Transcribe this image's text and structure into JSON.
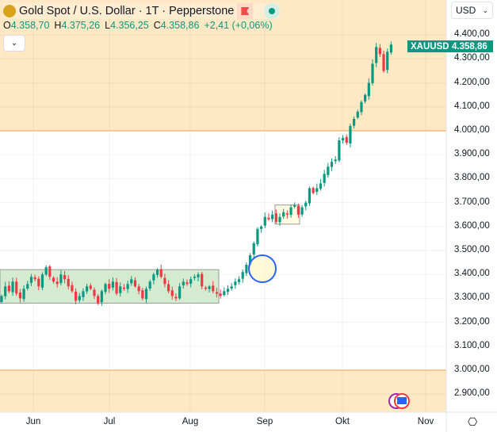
{
  "header": {
    "title": "Gold Spot / U.S. Dollar · 1T · Pepperstone",
    "open_label": "O",
    "open": "4.358,70",
    "high_label": "H",
    "high": "4.375,26",
    "low_label": "L",
    "low": "4.356,25",
    "close_label": "C",
    "close": "4.358,86",
    "change": "+2,41 (+0,06%)"
  },
  "currency": "USD",
  "price_tag": {
    "symbol": "XAUUSD",
    "price": "4.358,86"
  },
  "y_axis": [
    "4.400,00",
    "4.300,00",
    "4.200,00",
    "4.100,00",
    "4.000,00",
    "3.900,00",
    "3.800,00",
    "3.700,00",
    "3.600,00",
    "3.500,00",
    "3.400,00",
    "3.300,00",
    "3.200,00",
    "3.100,00",
    "3.000,00",
    "2.900,00"
  ],
  "x_axis": [
    "Jun",
    "Jul",
    "Aug",
    "Sep",
    "Okt",
    "Nov"
  ],
  "colors": {
    "up": "#089981",
    "down": "#f23645",
    "zone": "#ffe8c4",
    "range_box": "#d4ebd0",
    "circle": "#2962ff"
  },
  "closes": [
    3310,
    3350,
    3330,
    3370,
    3320,
    3300,
    3340,
    3360,
    3390,
    3380,
    3350,
    3400,
    3430,
    3390,
    3370,
    3360,
    3400,
    3380,
    3350,
    3330,
    3290,
    3310,
    3330,
    3350,
    3340,
    3310,
    3280,
    3330,
    3360,
    3340,
    3370,
    3320,
    3350,
    3340,
    3360,
    3380,
    3350,
    3330,
    3300,
    3340,
    3370,
    3400,
    3420,
    3390,
    3360,
    3330,
    3310,
    3300,
    3350,
    3370,
    3360,
    3380,
    3390,
    3400,
    3350,
    3340,
    3350,
    3330,
    3320,
    3310,
    3330,
    3340,
    3350,
    3370,
    3380,
    3410,
    3440,
    3480,
    3530,
    3590,
    3600,
    3640,
    3630,
    3650,
    3620,
    3640,
    3660,
    3650,
    3680,
    3690,
    3650,
    3680,
    3700,
    3760,
    3740,
    3760,
    3780,
    3820,
    3850,
    3870,
    3880,
    3960,
    3970,
    3950,
    4020,
    4050,
    4080,
    4120,
    4150,
    4200,
    4280,
    4350,
    4320,
    4250,
    4330,
    4360
  ]
}
